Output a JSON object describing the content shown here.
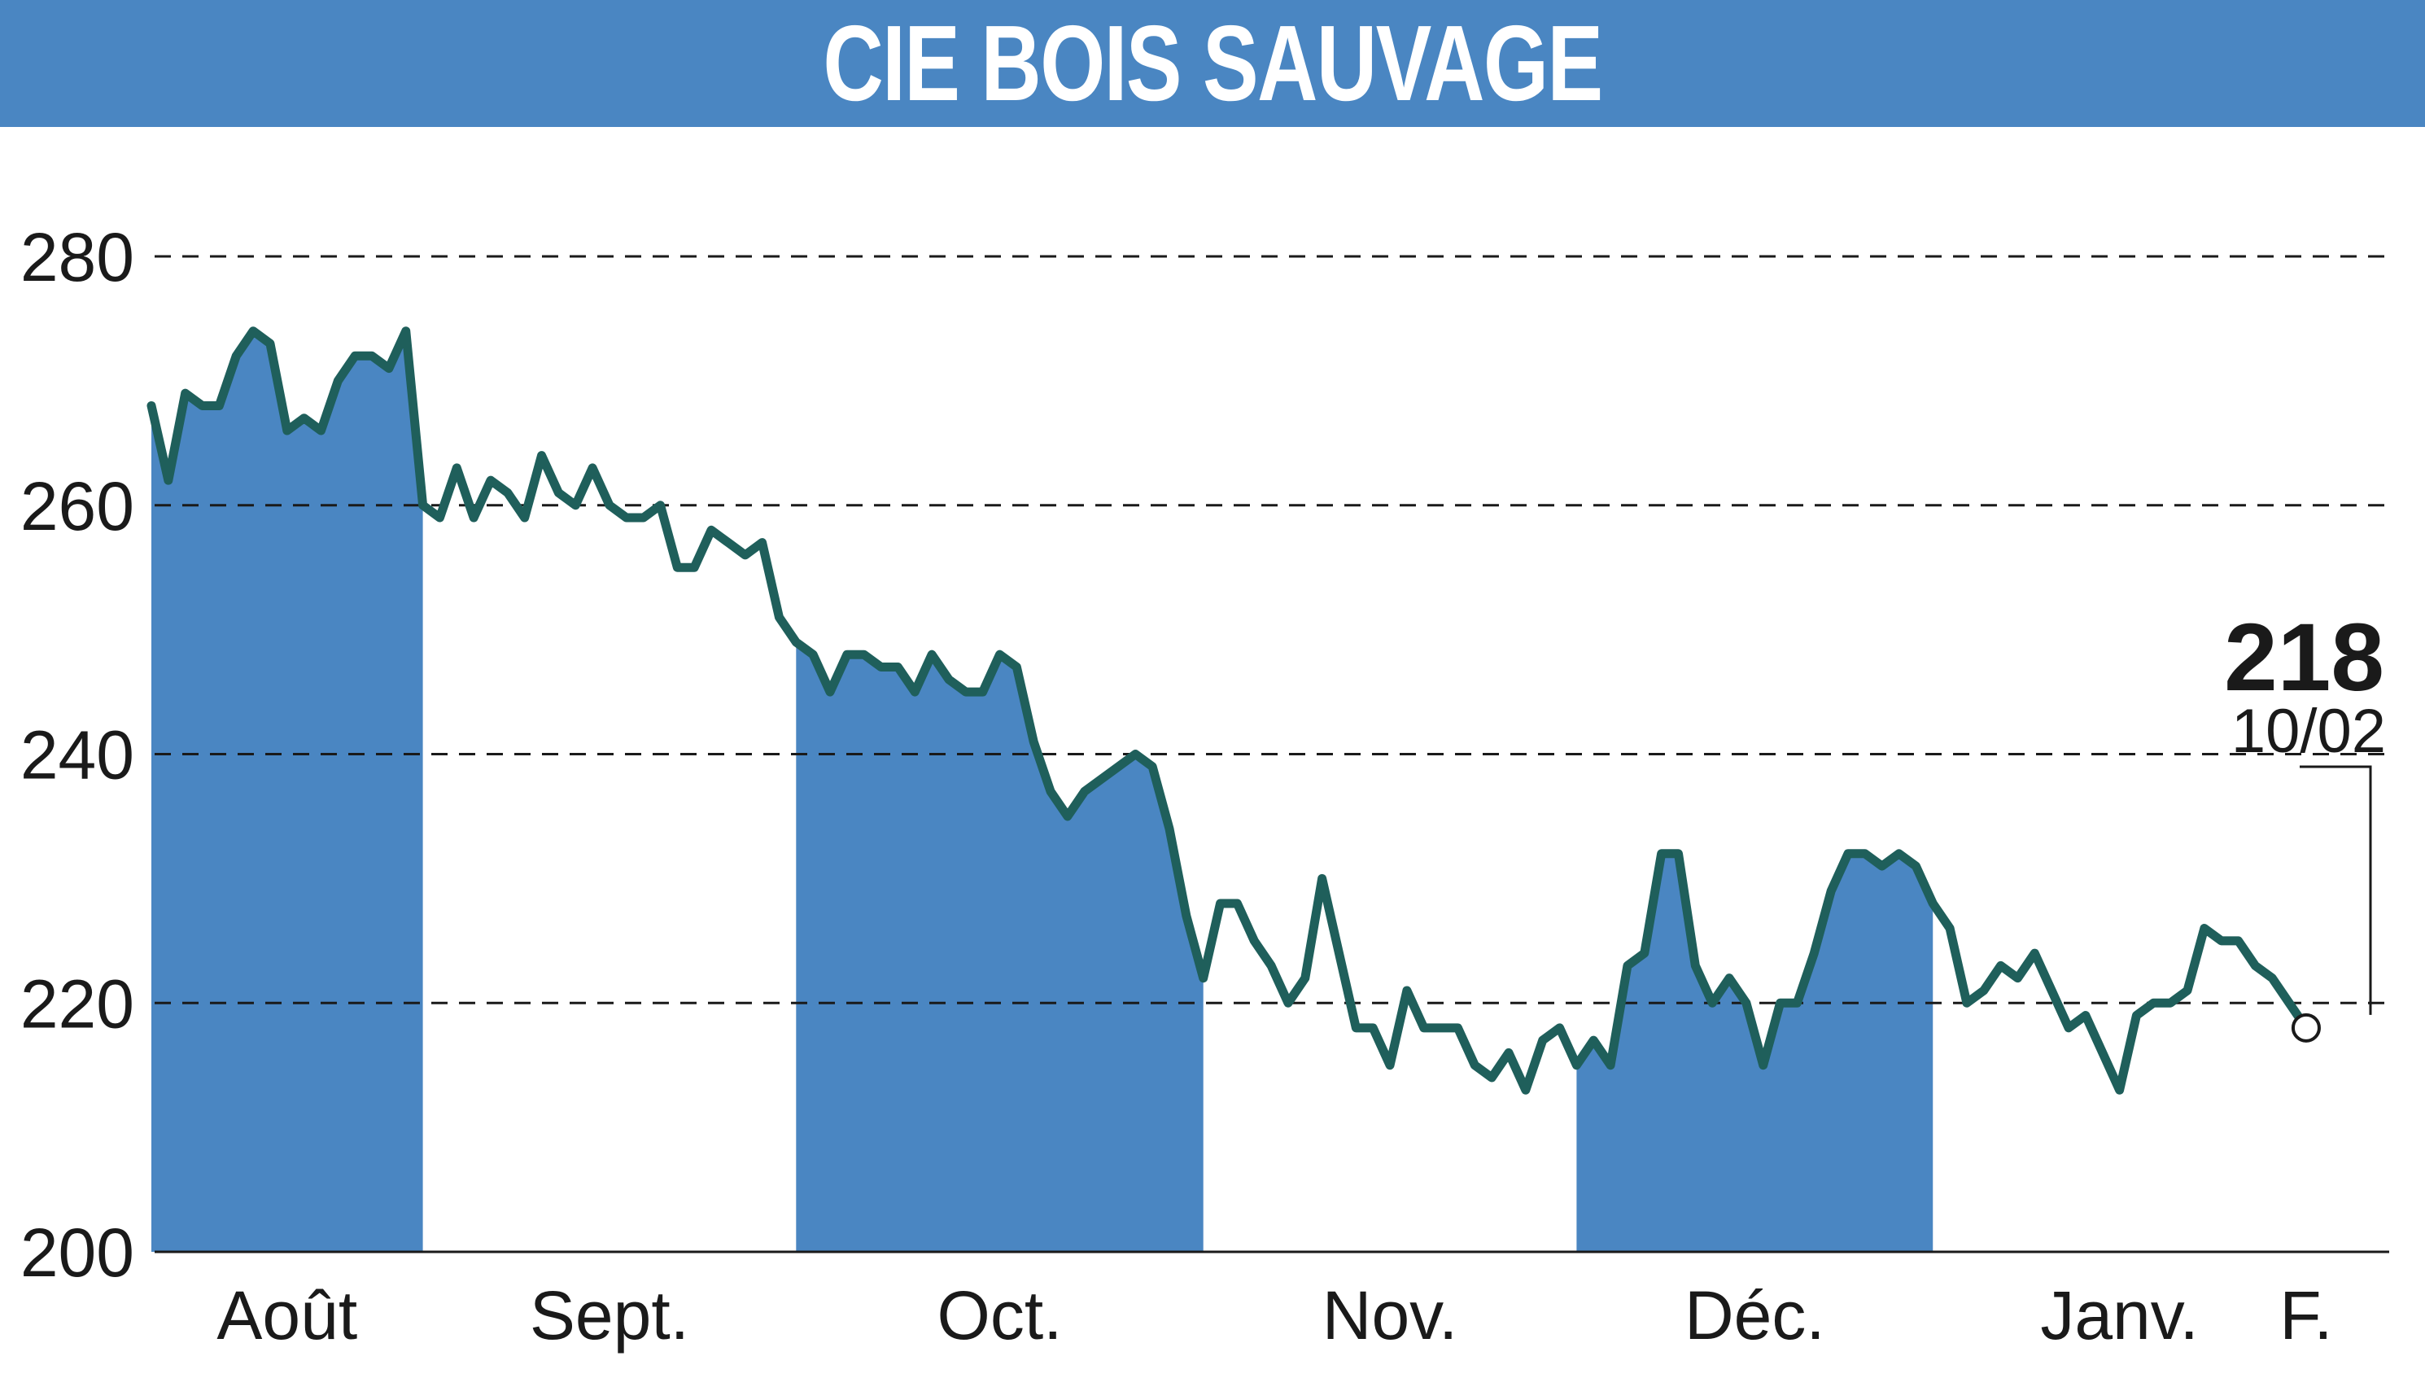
{
  "header": {
    "title": "CIE BOIS SAUVAGE"
  },
  "colors": {
    "banner": "#4a86c2",
    "band_fill": "#4a86c2",
    "line": "#1f5f5b",
    "grid": "#1a1a1a",
    "text": "#1a1a1a"
  },
  "chart_data": {
    "type": "line",
    "title": "CIE BOIS SAUVAGE",
    "xlabel": "",
    "ylabel": "",
    "ylim": [
      200,
      280
    ],
    "yticks": [
      200,
      220,
      240,
      260,
      280
    ],
    "grid": "horizontal dashed",
    "legend": "none",
    "months": [
      {
        "label": "Août",
        "shaded": true,
        "start": 0,
        "end": 16
      },
      {
        "label": "Sept.",
        "shaded": false,
        "start": 16,
        "end": 38
      },
      {
        "label": "Oct.",
        "shaded": true,
        "start": 38,
        "end": 62
      },
      {
        "label": "Nov.",
        "shaded": false,
        "start": 62,
        "end": 84
      },
      {
        "label": "Déc.",
        "shaded": true,
        "start": 84,
        "end": 105
      },
      {
        "label": "Janv.",
        "shaded": false,
        "start": 105,
        "end": 127
      },
      {
        "label": "F.",
        "shaded": true,
        "start": 127,
        "end": 133
      }
    ],
    "values": [
      268,
      262,
      269,
      268,
      268,
      272,
      274,
      273,
      266,
      267,
      266,
      270,
      272,
      272,
      271,
      274,
      260,
      259,
      263,
      259,
      262,
      261,
      259,
      264,
      261,
      260,
      263,
      260,
      259,
      259,
      260,
      255,
      255,
      258,
      257,
      256,
      257,
      251,
      249,
      248,
      245,
      248,
      248,
      247,
      247,
      245,
      248,
      246,
      245,
      245,
      248,
      247,
      241,
      237,
      235,
      237,
      238,
      239,
      240,
      239,
      234,
      227,
      222,
      228,
      228,
      225,
      223,
      220,
      222,
      230,
      224,
      218,
      218,
      215,
      221,
      218,
      218,
      218,
      215,
      214,
      216,
      213,
      217,
      218,
      215,
      217,
      215,
      223,
      224,
      232,
      232,
      223,
      220,
      222,
      220,
      215,
      220,
      220,
      224,
      229,
      232,
      232,
      231,
      232,
      231,
      228,
      226,
      220,
      221,
      223,
      222,
      224,
      221,
      218,
      219,
      216,
      213,
      219,
      220,
      220,
      221,
      226,
      225,
      225,
      223,
      222,
      220,
      218
    ],
    "last_value": "218",
    "last_date": "10/02"
  }
}
